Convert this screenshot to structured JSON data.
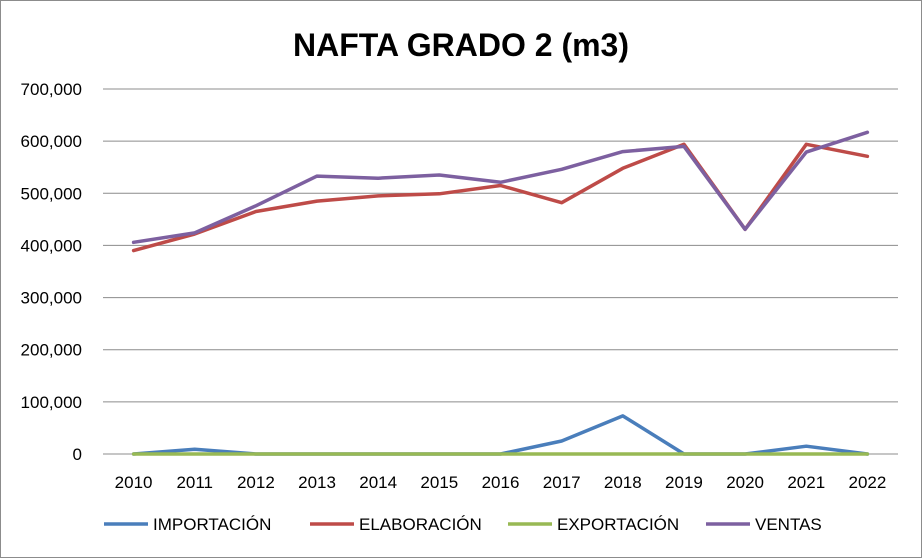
{
  "chart_data": {
    "type": "line",
    "title": "NAFTA GRADO 2 (m3)",
    "xlabel": "",
    "ylabel": "",
    "categories": [
      "2010",
      "2011",
      "2012",
      "2013",
      "2014",
      "2015",
      "2016",
      "2017",
      "2018",
      "2019",
      "2020",
      "2021",
      "2022"
    ],
    "ylim": [
      0,
      700000
    ],
    "yticks": [
      0,
      100000,
      200000,
      300000,
      400000,
      500000,
      600000,
      700000
    ],
    "ytick_labels": [
      "0",
      "100,000",
      "200,000",
      "300,000",
      "400,000",
      "500,000",
      "600,000",
      "700,000"
    ],
    "grid": true,
    "legend_position": "bottom",
    "series": [
      {
        "name": "IMPORTACIÓN",
        "color": "#4a7ebb",
        "values": [
          0,
          9000,
          0,
          0,
          0,
          0,
          0,
          25000,
          73000,
          0,
          0,
          15000,
          0
        ]
      },
      {
        "name": "ELABORACIÓN",
        "color": "#be4b48",
        "values": [
          390000,
          422000,
          465000,
          485000,
          495000,
          499000,
          515000,
          482000,
          548000,
          594000,
          431000,
          594000,
          571000
        ]
      },
      {
        "name": "EXPORTACIÓN",
        "color": "#98b954",
        "values": [
          0,
          0,
          0,
          0,
          0,
          0,
          0,
          0,
          0,
          0,
          0,
          0,
          0
        ]
      },
      {
        "name": "VENTAS",
        "color": "#7d60a0",
        "values": [
          406000,
          424000,
          476000,
          533000,
          529000,
          535000,
          521000,
          546000,
          580000,
          590000,
          431000,
          579000,
          617000
        ]
      }
    ]
  }
}
